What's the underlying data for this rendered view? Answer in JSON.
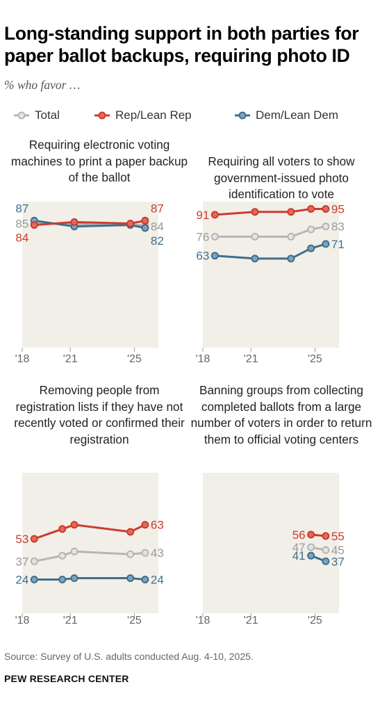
{
  "title": "Long-standing support in both parties for paper ballot backups, requiring photo ID",
  "subtitle": "% who favor …",
  "legend": [
    {
      "label": "Total",
      "color": "#b5b5b5"
    },
    {
      "label": "Rep/Lean Rep",
      "color": "#cc3b2e"
    },
    {
      "label": "Dem/Lean Dem",
      "color": "#3f6e8c"
    }
  ],
  "colors": {
    "panel_bg": "#f1efe7",
    "total": "#b5b5b5",
    "rep": "#cc3b2e",
    "dem": "#3f6e8c"
  },
  "chart_data": [
    {
      "type": "line",
      "title": "Requiring electronic voting machines to print a paper backup of the ballot",
      "x_ticks": [
        "'18",
        "'21",
        "'25"
      ],
      "xlim": [
        2018,
        2026.5
      ],
      "ylim": [
        0,
        100
      ],
      "series": [
        {
          "name": "Total",
          "x": [
            2018.75,
            2025.67
          ],
          "values": [
            85,
            84
          ]
        },
        {
          "name": "Rep/Lean Rep",
          "x": [
            2018.75,
            2021.25,
            2024.75,
            2025.67
          ],
          "values": [
            84,
            86,
            85,
            87
          ]
        },
        {
          "name": "Dem/Lean Dem",
          "x": [
            2018.75,
            2021.25,
            2024.75,
            2025.67
          ],
          "values": [
            87,
            83,
            84,
            82
          ]
        }
      ]
    },
    {
      "type": "line",
      "title": "Requiring all voters to show government-issued photo identification to vote",
      "x_ticks": [
        "'18",
        "'21",
        "'25"
      ],
      "xlim": [
        2018,
        2026.5
      ],
      "ylim": [
        0,
        100
      ],
      "series": [
        {
          "name": "Total",
          "x": [
            2018.75,
            2021.25,
            2023.5,
            2024.75,
            2025.67
          ],
          "values": [
            76,
            76,
            76,
            81,
            83
          ]
        },
        {
          "name": "Rep/Lean Rep",
          "x": [
            2018.75,
            2021.25,
            2023.5,
            2024.75,
            2025.67
          ],
          "values": [
            91,
            93,
            93,
            95,
            95
          ]
        },
        {
          "name": "Dem/Lean Dem",
          "x": [
            2018.75,
            2021.25,
            2023.5,
            2024.75,
            2025.67
          ],
          "values": [
            63,
            61,
            61,
            68,
            71
          ]
        }
      ]
    },
    {
      "type": "line",
      "title": "Removing people from registration lists if they have not recently voted or confirmed their registration",
      "x_ticks": [
        "'18",
        "'21",
        "'25"
      ],
      "xlim": [
        2018,
        2026.5
      ],
      "ylim": [
        0,
        100
      ],
      "series": [
        {
          "name": "Total",
          "x": [
            2018.75,
            2020.5,
            2021.25,
            2024.75,
            2025.67
          ],
          "values": [
            37,
            41,
            44,
            42,
            43
          ]
        },
        {
          "name": "Rep/Lean Rep",
          "x": [
            2018.75,
            2020.5,
            2021.25,
            2024.75,
            2025.67
          ],
          "values": [
            53,
            60,
            63,
            58,
            63
          ]
        },
        {
          "name": "Dem/Lean Dem",
          "x": [
            2018.75,
            2020.5,
            2021.25,
            2024.75,
            2025.67
          ],
          "values": [
            24,
            24,
            25,
            25,
            24
          ]
        }
      ]
    },
    {
      "type": "line",
      "title": "Banning groups from collecting completed ballots from a large number of voters in order to return them to official voting centers",
      "x_ticks": [
        "'18",
        "'21",
        "'25"
      ],
      "xlim": [
        2018,
        2026.5
      ],
      "ylim": [
        0,
        100
      ],
      "series": [
        {
          "name": "Total",
          "x": [
            2024.75,
            2025.67
          ],
          "values": [
            47,
            45
          ]
        },
        {
          "name": "Rep/Lean Rep",
          "x": [
            2024.75,
            2025.67
          ],
          "values": [
            56,
            55
          ]
        },
        {
          "name": "Dem/Lean Dem",
          "x": [
            2024.75,
            2025.67
          ],
          "values": [
            41,
            37
          ]
        }
      ]
    }
  ],
  "source": "Source: Survey of U.S. adults conducted Aug. 4-10, 2025.",
  "footer": "PEW RESEARCH CENTER"
}
